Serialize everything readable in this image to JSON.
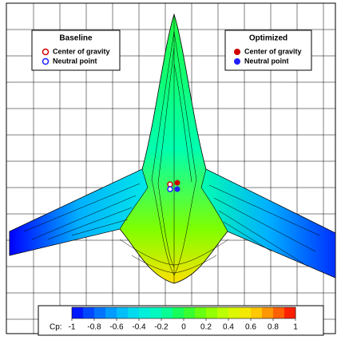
{
  "chart_data": {
    "type": "contour",
    "legend": {
      "left": {
        "title": "Baseline",
        "items": [
          "Center of gravity",
          "Neutral point"
        ]
      },
      "right": {
        "title": "Optimized",
        "items": [
          "Center of gravity",
          "Neutral point"
        ]
      }
    },
    "colorbar_label": "Cp:",
    "clim": [
      -1,
      1
    ],
    "cticks": [
      -1,
      -0.8,
      -0.6,
      -0.4,
      -0.2,
      0,
      0.2,
      0.4,
      0.6,
      0.8,
      1
    ],
    "colormap": [
      "#0000ff",
      "#0060ff",
      "#00b0ff",
      "#00e8e8",
      "#00ffb0",
      "#20ff40",
      "#80ff00",
      "#d0ff00",
      "#ffe000",
      "#ff8000",
      "#ff0000"
    ]
  }
}
